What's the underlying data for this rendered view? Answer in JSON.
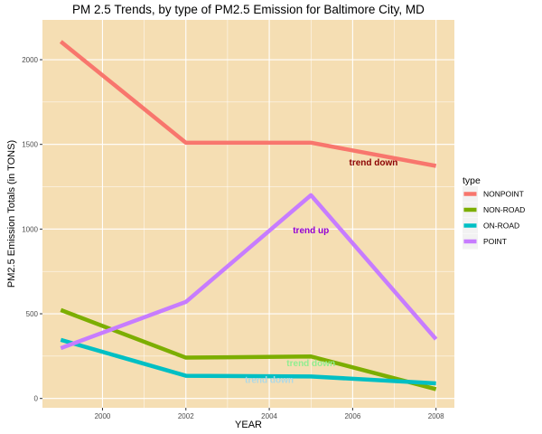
{
  "chart_data": {
    "type": "line",
    "title": "PM 2.5 Trends, by type of PM2.5 Emission for Baltimore City, MD",
    "xlabel": "YEAR",
    "ylabel": "PM2.5 Emission Totals (in TONS)",
    "x": [
      1999,
      2002,
      2005,
      2008
    ],
    "xlim": [
      1998.56,
      2008.44
    ],
    "ylim": [
      -55,
      2235
    ],
    "xticks": [
      2000,
      2002,
      2004,
      2006,
      2008
    ],
    "yticks": [
      0,
      500,
      1000,
      1500,
      2000
    ],
    "grid": true,
    "background": "#F5DEB3",
    "legend": {
      "title": "type",
      "position": "right"
    },
    "series": [
      {
        "name": "NONPOINT",
        "color": "#F8766D",
        "values": [
          2107,
          1510,
          1510,
          1373
        ]
      },
      {
        "name": "NON-ROAD",
        "color": "#7CAE00",
        "values": [
          522,
          241,
          248,
          55
        ]
      },
      {
        "name": "ON-ROAD",
        "color": "#00BFC4",
        "values": [
          346,
          134,
          130,
          89
        ]
      },
      {
        "name": "POINT",
        "color": "#C77CFF",
        "values": [
          297,
          570,
          1200,
          350
        ]
      }
    ],
    "annotations": [
      {
        "text": "trend down",
        "x": 2006.5,
        "y": 1395,
        "color": "#8B0000"
      },
      {
        "text": "trend up",
        "x": 2005,
        "y": 995,
        "color": "#9400D3"
      },
      {
        "text": "trend down",
        "x": 2005,
        "y": 210,
        "color": "#90EE90"
      },
      {
        "text": "trend down",
        "x": 2004,
        "y": 110,
        "color": "#ADD8E6"
      }
    ]
  }
}
